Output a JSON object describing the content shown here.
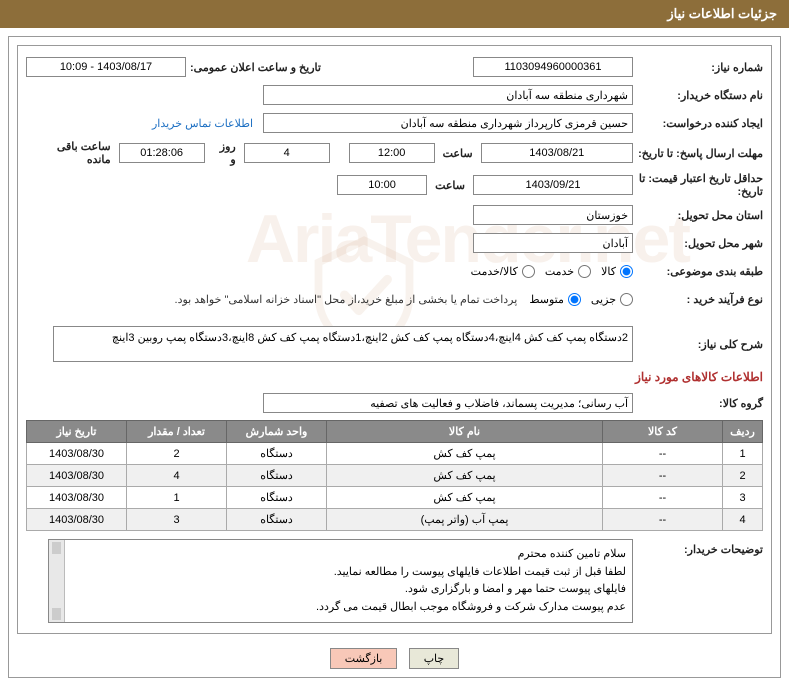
{
  "header": {
    "title": "جزئیات اطلاعات نیاز"
  },
  "need": {
    "number_label": "شماره نیاز:",
    "number": "1103094960000361",
    "announce_date_label": "تاریخ و ساعت اعلان عمومی:",
    "announce_date": "1403/08/17 - 10:09",
    "buyer_org_label": "نام دستگاه خریدار:",
    "buyer_org": "شهرداری منطقه سه آبادان",
    "requester_label": "ایجاد کننده درخواست:",
    "requester": "حسین قرمزی کارپرداز شهرداری منطقه سه آبادان",
    "contact_link": "اطلاعات تماس خریدار",
    "deadline_label": "مهلت ارسال پاسخ: تا تاریخ:",
    "deadline_date": "1403/08/21",
    "time_label": "ساعت",
    "deadline_time": "12:00",
    "days_remain": "4",
    "days_and": "روز و",
    "countdown": "01:28:06",
    "remain_suffix": "ساعت باقی مانده",
    "validity_label": "حداقل تاریخ اعتبار قیمت: تا تاریخ:",
    "validity_date": "1403/09/21",
    "validity_time": "10:00",
    "province_label": "استان محل تحویل:",
    "province": "خوزستان",
    "city_label": "شهر محل تحویل:",
    "city": "آبادان",
    "category_label": "طبقه بندی موضوعی:",
    "cat_opts": {
      "goods": "کالا",
      "service": "خدمت",
      "both": "کالا/خدمت"
    },
    "process_label": "نوع فرآیند خرید :",
    "proc_opts": {
      "partial": "جزیی",
      "medium": "متوسط"
    },
    "process_note": "پرداخت تمام یا بخشی از مبلغ خرید،از محل \"اسناد خزانه اسلامی\" خواهد بود.",
    "overview_label": "شرح کلی نیاز:",
    "overview": "2دستگاه پمپ کف کش 4اینچ،4دستگاه پمپ کف کش 2اینچ،1دستگاه پمپ کف کش 8اینچ،3دستگاه پمپ روبین 3اینچ",
    "items_title": "اطلاعات کالاهای مورد نیاز",
    "goods_group_label": "گروه کالا:",
    "goods_group": "آب رسانی؛ مدیریت پسماند، فاضلاب و فعالیت های تصفیه",
    "buyer_notes_label": "توضیحات خریدار:",
    "buyer_notes": [
      "سلام تامین کننده محترم",
      "لطفا قبل از ثبت قیمت اطلاعات فایلهای پیوست را مطالعه نمایید.",
      "فایلهای پیوست حتما مهر و امضا و بارگزاری شود.",
      "عدم پیوست مدارک شرکت و فروشگاه موجب ابطال قیمت می گردد."
    ]
  },
  "table": {
    "headers": {
      "row": "ردیف",
      "code": "کد کالا",
      "name": "نام کالا",
      "unit": "واحد شمارش",
      "qty": "تعداد / مقدار",
      "date": "تاریخ نیاز"
    },
    "rows": [
      {
        "n": "1",
        "code": "--",
        "name": "پمپ کف کش",
        "unit": "دستگاه",
        "qty": "2",
        "date": "1403/08/30"
      },
      {
        "n": "2",
        "code": "--",
        "name": "پمپ کف کش",
        "unit": "دستگاه",
        "qty": "4",
        "date": "1403/08/30"
      },
      {
        "n": "3",
        "code": "--",
        "name": "پمپ کف کش",
        "unit": "دستگاه",
        "qty": "1",
        "date": "1403/08/30"
      },
      {
        "n": "4",
        "code": "--",
        "name": "پمپ آب (واتر پمپ)",
        "unit": "دستگاه",
        "qty": "3",
        "date": "1403/08/30"
      }
    ]
  },
  "footer": {
    "print": "چاپ",
    "back": "بازگشت"
  },
  "colors": {
    "header_bg": "#8d6e3a",
    "th_bg": "#8a8a8a",
    "link": "#1b6ec2",
    "section_title": "#b03030"
  }
}
